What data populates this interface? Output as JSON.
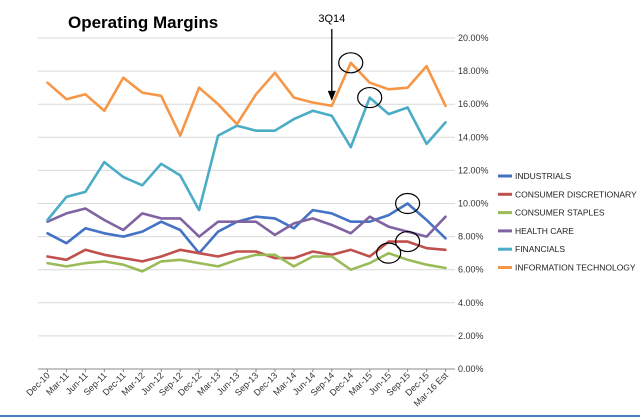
{
  "chart_data": {
    "type": "line",
    "title": "Operating Margins",
    "xlabel": "",
    "ylabel": "",
    "ylim": [
      0,
      20
    ],
    "y_ticks": [
      "0.00%",
      "2.00%",
      "4.00%",
      "6.00%",
      "8.00%",
      "10.00%",
      "12.00%",
      "14.00%",
      "16.00%",
      "18.00%",
      "20.00%"
    ],
    "categories": [
      "Dec-10",
      "Mar-11",
      "Jun-11",
      "Sep-11",
      "Dec-11",
      "Mar-12",
      "Jun-12",
      "Sep-12",
      "Dec-12",
      "Mar-13",
      "Jun-13",
      "Sep-13",
      "Dec-13",
      "Mar-14",
      "Jun-14",
      "Sep-14",
      "Dec-14",
      "Mar-15",
      "Jun-15",
      "Sep-15",
      "Dec-15",
      "Mar-16 Est"
    ],
    "legend_position": "right",
    "annotation": {
      "label": "3Q14",
      "category": "Sep-14"
    },
    "series": [
      {
        "name": "INDUSTRIALS",
        "color": "#4472C4",
        "values": [
          8.2,
          7.6,
          8.5,
          8.2,
          8.0,
          8.3,
          8.9,
          8.4,
          7.0,
          8.3,
          8.9,
          9.2,
          9.1,
          8.5,
          9.6,
          9.4,
          8.9,
          8.9,
          9.3,
          10.0,
          9.0,
          7.9
        ]
      },
      {
        "name": "CONSUMER DISCRETIONARY",
        "color": "#C0504D",
        "values": [
          6.8,
          6.6,
          7.2,
          6.9,
          6.7,
          6.5,
          6.8,
          7.2,
          7.0,
          6.8,
          7.1,
          7.1,
          6.7,
          6.7,
          7.1,
          6.9,
          7.2,
          6.8,
          7.7,
          7.7,
          7.3,
          7.2
        ]
      },
      {
        "name": "CONSUMER STAPLES",
        "color": "#9BBB59",
        "values": [
          6.4,
          6.2,
          6.4,
          6.5,
          6.3,
          5.9,
          6.5,
          6.6,
          6.4,
          6.2,
          6.6,
          6.9,
          6.9,
          6.2,
          6.8,
          6.8,
          6.0,
          6.4,
          7.0,
          6.6,
          6.3,
          6.1
        ]
      },
      {
        "name": "HEALTH CARE",
        "color": "#8064A2",
        "values": [
          8.9,
          9.4,
          9.7,
          9.0,
          8.4,
          9.4,
          9.1,
          9.1,
          8.0,
          8.9,
          8.9,
          8.9,
          8.1,
          8.8,
          9.1,
          8.7,
          8.2,
          9.2,
          8.6,
          8.3,
          8.0,
          9.2
        ]
      },
      {
        "name": "FINANCIALS",
        "color": "#4BACC6",
        "values": [
          9.0,
          10.4,
          10.7,
          12.5,
          11.6,
          11.1,
          12.4,
          11.7,
          9.6,
          14.1,
          14.7,
          14.4,
          14.4,
          15.1,
          15.6,
          15.3,
          13.4,
          16.4,
          15.4,
          15.8,
          13.6,
          14.9
        ]
      },
      {
        "name": "INFORMATION TECHNOLOGY",
        "color": "#F79646",
        "values": [
          17.3,
          16.3,
          16.6,
          15.6,
          17.6,
          16.7,
          16.5,
          14.1,
          17.0,
          16.0,
          14.8,
          16.6,
          17.9,
          16.4,
          16.1,
          15.9,
          18.5,
          17.3,
          16.9,
          17.0,
          18.3,
          15.9
        ]
      }
    ],
    "highlights": [
      {
        "series": "INFORMATION TECHNOLOGY",
        "category": "Dec-14"
      },
      {
        "series": "FINANCIALS",
        "category": "Mar-15"
      },
      {
        "series": "INDUSTRIALS",
        "category": "Sep-15"
      },
      {
        "series": "CONSUMER DISCRETIONARY",
        "category": "Sep-15"
      },
      {
        "series": "CONSUMER STAPLES",
        "category": "Jun-15"
      }
    ]
  }
}
